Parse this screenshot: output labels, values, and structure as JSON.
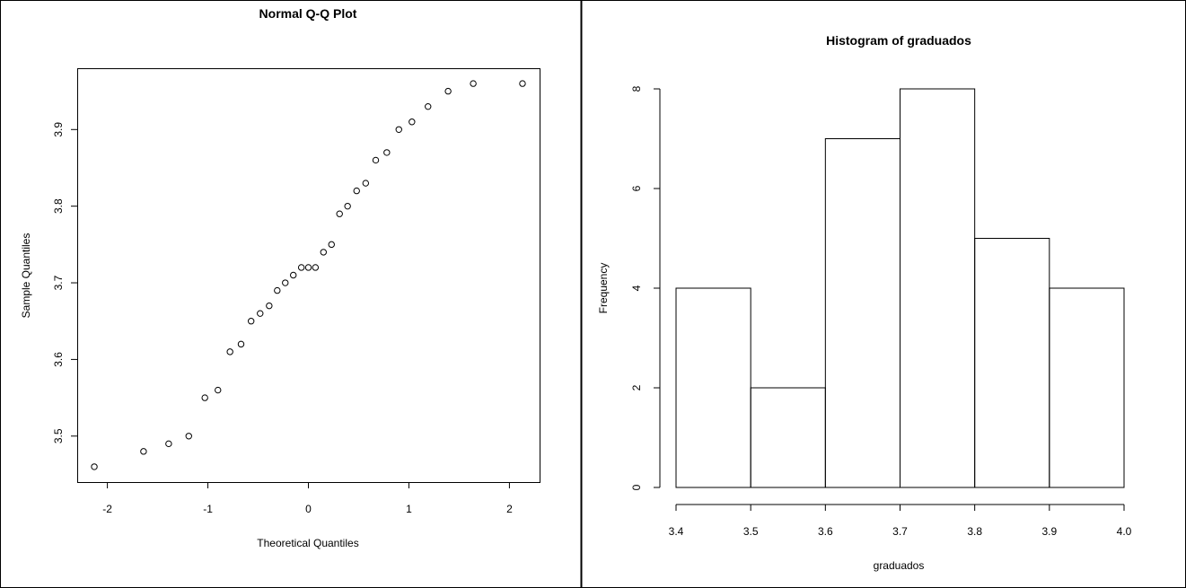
{
  "chart_data": [
    {
      "type": "scatter",
      "title": "Normal Q-Q Plot",
      "xlabel": "Theoretical Quantiles",
      "ylabel": "Sample Quantiles",
      "xlim": [
        -2.3,
        2.3
      ],
      "ylim": [
        3.44,
        3.98
      ],
      "xticks": [
        -2,
        -1,
        0,
        1,
        2
      ],
      "xtick_labels": [
        "-2",
        "-1",
        "0",
        "1",
        "2"
      ],
      "yticks": [
        3.5,
        3.6,
        3.7,
        3.8,
        3.9
      ],
      "ytick_labels": [
        "3.5",
        "3.6",
        "3.7",
        "3.8",
        "3.9"
      ],
      "x": [
        -2.13,
        -1.64,
        -1.39,
        -1.19,
        -1.03,
        -0.9,
        -0.78,
        -0.67,
        -0.57,
        -0.48,
        -0.39,
        -0.31,
        -0.23,
        -0.15,
        -0.07,
        0.0,
        0.07,
        0.15,
        0.23,
        0.31,
        0.39,
        0.48,
        0.57,
        0.67,
        0.78,
        0.9,
        1.03,
        1.19,
        1.39,
        1.64,
        2.13
      ],
      "y": [
        3.46,
        3.48,
        3.49,
        3.5,
        3.55,
        3.56,
        3.61,
        3.62,
        3.65,
        3.66,
        3.67,
        3.69,
        3.7,
        3.71,
        3.72,
        3.72,
        3.72,
        3.74,
        3.75,
        3.79,
        3.8,
        3.82,
        3.83,
        3.86,
        3.87,
        3.9,
        3.91,
        3.93,
        3.95,
        3.96,
        3.96
      ]
    },
    {
      "type": "bar",
      "title": "Histogram of graduados",
      "xlabel": "graduados",
      "ylabel": "Frequency",
      "bins": [
        [
          3.4,
          3.5
        ],
        [
          3.5,
          3.6
        ],
        [
          3.6,
          3.7
        ],
        [
          3.7,
          3.8
        ],
        [
          3.8,
          3.9
        ],
        [
          3.9,
          4.0
        ]
      ],
      "values": [
        4,
        2,
        7,
        8,
        5,
        4
      ],
      "xlim": [
        3.4,
        4.0
      ],
      "ylim": [
        0,
        8
      ],
      "xticks": [
        3.4,
        3.5,
        3.6,
        3.7,
        3.8,
        3.9,
        4.0
      ],
      "xtick_labels": [
        "3.4",
        "3.5",
        "3.6",
        "3.7",
        "3.8",
        "3.9",
        "4.0"
      ],
      "yticks": [
        0,
        2,
        4,
        6,
        8
      ],
      "ytick_labels": [
        "0",
        "2",
        "4",
        "6",
        "8"
      ]
    }
  ]
}
